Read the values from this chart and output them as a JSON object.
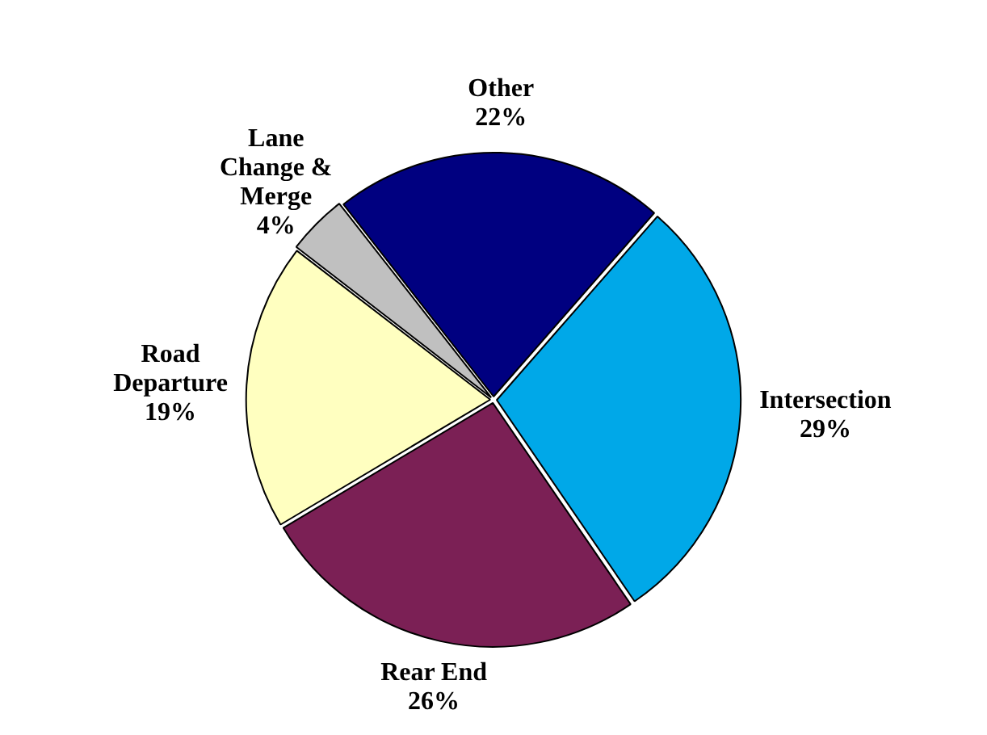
{
  "chart_data": {
    "type": "pie",
    "categories": [
      "Other",
      "Intersection",
      "Rear End",
      "Road Departure",
      "Lane Change & Merge"
    ],
    "values": [
      22,
      29,
      26,
      19,
      4
    ],
    "value_labels": [
      "22%",
      "29%",
      "26%",
      "19%",
      "4%"
    ],
    "colors": [
      "#000080",
      "#00a8e8",
      "#7b2055",
      "#ffffc0",
      "#c0c0c0"
    ],
    "legend": false
  }
}
